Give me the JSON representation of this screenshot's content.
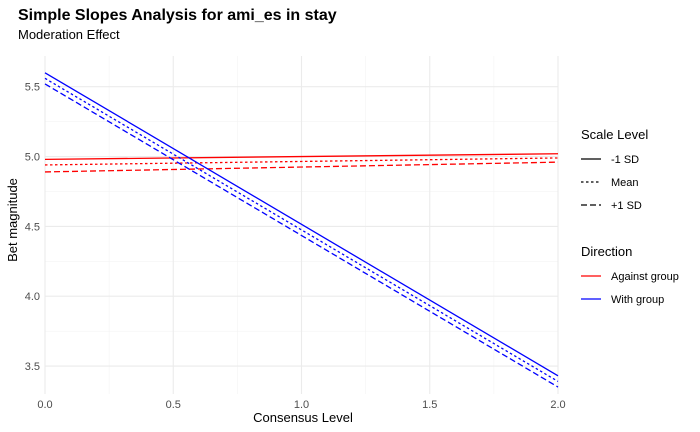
{
  "chart_data": {
    "type": "line",
    "title": "Simple Slopes Analysis for ami_es in stay",
    "subtitle": "Moderation Effect",
    "xlabel": "Consensus Level",
    "ylabel": "Bet magnitude",
    "xlim": [
      0,
      2
    ],
    "ylim": [
      3.3,
      5.72
    ],
    "x_ticks": [
      0.0,
      0.5,
      1.0,
      1.5,
      2.0
    ],
    "x_tick_labels": [
      "0.0",
      "0.5",
      "1.0",
      "1.5",
      "2.0"
    ],
    "y_ticks": [
      3.5,
      4.0,
      4.5,
      5.0,
      5.5
    ],
    "y_tick_labels": [
      "3.5",
      "4.0",
      "4.5",
      "5.0",
      "5.5"
    ],
    "grid": true,
    "legend_placement": "right",
    "legends": [
      {
        "title": "Scale Level",
        "entries": [
          {
            "label": "-1 SD",
            "dash": "solid"
          },
          {
            "label": "Mean",
            "dash": "dotted"
          },
          {
            "label": "+1 SD",
            "dash": "dashed"
          }
        ]
      },
      {
        "title": "Direction",
        "entries": [
          {
            "label": "Against group",
            "color": "#ff0000"
          },
          {
            "label": "With group",
            "color": "#0000ff"
          }
        ]
      }
    ],
    "series": [
      {
        "direction": "Against group",
        "scale": "-1 SD",
        "color": "#ff0000",
        "dash": "solid",
        "x": [
          0,
          2
        ],
        "y": [
          4.98,
          5.02
        ]
      },
      {
        "direction": "Against group",
        "scale": "Mean",
        "color": "#ff0000",
        "dash": "dotted",
        "x": [
          0,
          2
        ],
        "y": [
          4.94,
          4.99
        ]
      },
      {
        "direction": "Against group",
        "scale": "+1 SD",
        "color": "#ff0000",
        "dash": "dashed",
        "x": [
          0,
          2
        ],
        "y": [
          4.89,
          4.96
        ]
      },
      {
        "direction": "With group",
        "scale": "-1 SD",
        "color": "#0000ff",
        "dash": "solid",
        "x": [
          0,
          2
        ],
        "y": [
          5.6,
          3.43
        ]
      },
      {
        "direction": "With group",
        "scale": "Mean",
        "color": "#0000ff",
        "dash": "dotted",
        "x": [
          0,
          2
        ],
        "y": [
          5.56,
          3.39
        ]
      },
      {
        "direction": "With group",
        "scale": "+1 SD",
        "color": "#0000ff",
        "dash": "dashed",
        "x": [
          0,
          2
        ],
        "y": [
          5.52,
          3.35
        ]
      }
    ]
  }
}
